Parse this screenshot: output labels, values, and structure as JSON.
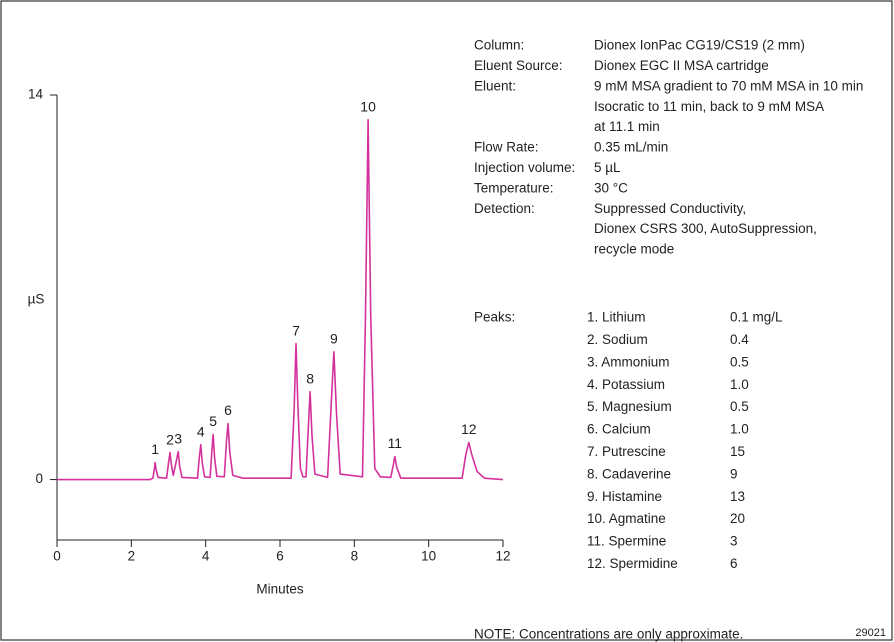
{
  "chart_data": {
    "type": "line",
    "y_label": "µS",
    "x_label": "Minutes",
    "color": "#d4329b",
    "xlim": [
      0,
      12
    ],
    "xticks": [
      0,
      2,
      4,
      6,
      8,
      10,
      12
    ],
    "ylim": [
      -2.2,
      14
    ],
    "yticks": [
      0,
      14
    ],
    "x": [
      0,
      2.5,
      2.58,
      2.62,
      2.64,
      2.67,
      2.72,
      2.95,
      3.0,
      3.04,
      3.08,
      3.13,
      3.2,
      3.26,
      3.3,
      3.36,
      3.78,
      3.83,
      3.87,
      3.91,
      3.97,
      4.12,
      4.17,
      4.2,
      4.24,
      4.3,
      4.5,
      4.56,
      4.6,
      4.65,
      4.73,
      5.0,
      6.3,
      6.38,
      6.43,
      6.48,
      6.55,
      6.62,
      6.7,
      6.76,
      6.81,
      6.86,
      6.94,
      7.28,
      7.38,
      7.45,
      7.52,
      7.62,
      8.22,
      8.3,
      8.37,
      8.44,
      8.55,
      8.7,
      8.98,
      9.05,
      9.09,
      9.14,
      9.25,
      10.9,
      11.0,
      11.08,
      11.16,
      11.3,
      11.5,
      12
    ],
    "values": [
      0,
      0,
      0.05,
      0.4,
      0.62,
      0.35,
      0.08,
      0.05,
      0.6,
      0.98,
      0.5,
      0.15,
      0.6,
      1.02,
      0.5,
      0.08,
      0.05,
      0.8,
      1.27,
      0.6,
      0.1,
      0.08,
      1.1,
      1.64,
      0.8,
      0.12,
      0.1,
      1.4,
      2.04,
      1.0,
      0.15,
      0.05,
      0.05,
      2.5,
      4.95,
      2.8,
      0.4,
      0.1,
      0.1,
      1.8,
      3.2,
      1.6,
      0.2,
      0.08,
      2.8,
      4.65,
      2.4,
      0.2,
      0.1,
      6,
      13.1,
      6,
      0.4,
      0.1,
      0.08,
      0.55,
      0.84,
      0.45,
      0.05,
      0.05,
      0.9,
      1.35,
      0.9,
      0.3,
      0.05,
      0
    ],
    "peaks": [
      {
        "name": "1",
        "x": 2.64,
        "y": 0.62
      },
      {
        "name": "2",
        "x": 3.04,
        "y": 0.98
      },
      {
        "name": "3",
        "x": 3.26,
        "y": 1.02
      },
      {
        "name": "4",
        "x": 3.87,
        "y": 1.27
      },
      {
        "name": "5",
        "x": 4.2,
        "y": 1.64
      },
      {
        "name": "6",
        "x": 4.6,
        "y": 2.04
      },
      {
        "name": "7",
        "x": 6.43,
        "y": 4.95
      },
      {
        "name": "8",
        "x": 6.81,
        "y": 3.2
      },
      {
        "name": "9",
        "x": 7.45,
        "y": 4.65
      },
      {
        "name": "10",
        "x": 8.37,
        "y": 13.1
      },
      {
        "name": "11",
        "x": 9.09,
        "y": 0.84
      },
      {
        "name": "12",
        "x": 11.08,
        "y": 1.35
      }
    ],
    "conditions": [
      {
        "label": "Column:",
        "lines": [
          "Dionex IonPac CG19/CS19 (2 mm)"
        ]
      },
      {
        "label": "Eluent Source:",
        "lines": [
          "Dionex EGC II MSA cartridge"
        ]
      },
      {
        "label": "Eluent:",
        "lines": [
          "9 mM MSA gradient to 70 mM MSA in 10 min",
          "Isocratic to 11 min, back to 9 mM MSA",
          "at 11.1 min"
        ]
      },
      {
        "label": "Flow Rate:",
        "lines": [
          "0.35 mL/min"
        ]
      },
      {
        "label": "Injection volume:",
        "lines": [
          "5 µL"
        ]
      },
      {
        "label": "Temperature:",
        "lines": [
          "30 °C"
        ]
      },
      {
        "label": "Detection:",
        "lines": [
          "Suppressed Conductivity,",
          "Dionex CSRS 300, AutoSuppression,",
          "recycle mode"
        ]
      }
    ],
    "peak_table": {
      "title": "Peaks:",
      "rows": [
        [
          "1. Lithium",
          "0.1 mg/L"
        ],
        [
          "2. Sodium",
          "0.4"
        ],
        [
          "3. Ammonium",
          "0.5"
        ],
        [
          "4. Potassium",
          "1.0"
        ],
        [
          "5. Magnesium",
          "0.5"
        ],
        [
          "6. Calcium",
          "1.0"
        ],
        [
          "7. Putrescine",
          "15"
        ],
        [
          "8. Cadaverine",
          "9"
        ],
        [
          "9. Histamine",
          "13"
        ],
        [
          "10. Agmatine",
          "20"
        ],
        [
          "11. Spermine",
          "3"
        ],
        [
          "12. Spermidine",
          "6"
        ]
      ]
    },
    "note": "NOTE: Concentrations are only approximate.",
    "figure_id": "29021"
  }
}
